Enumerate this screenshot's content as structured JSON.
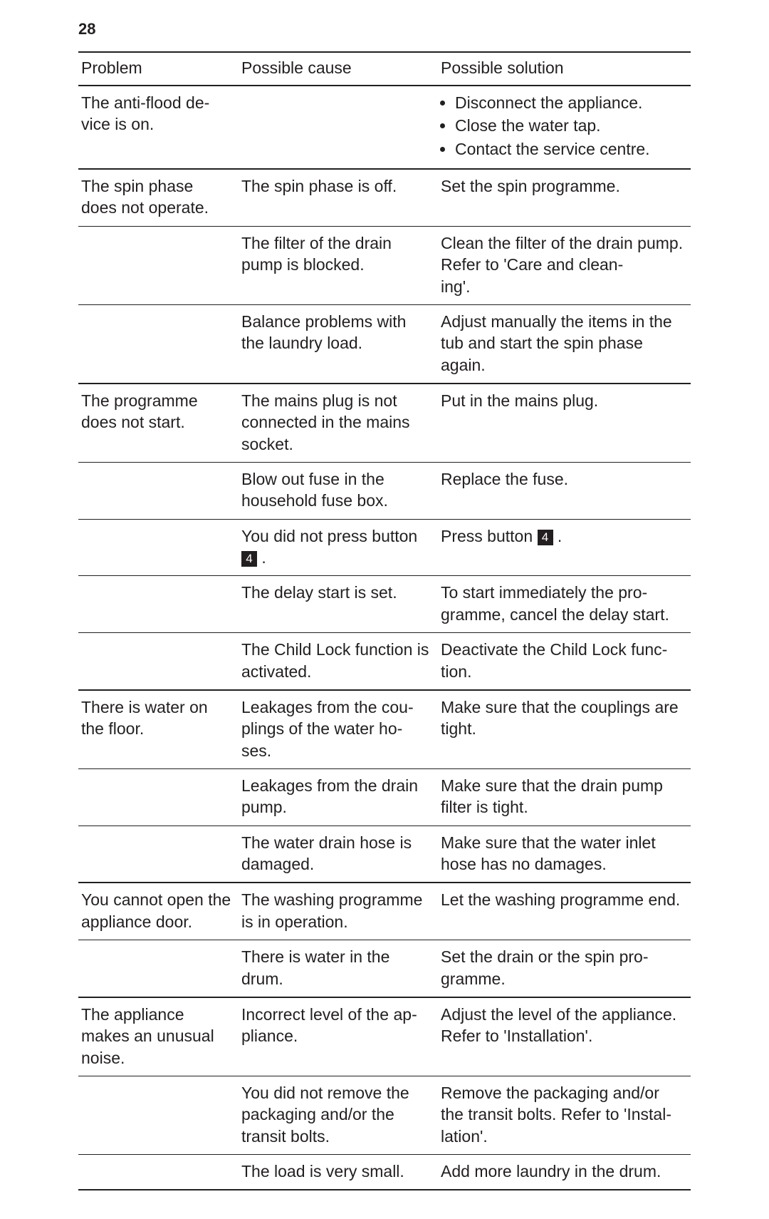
{
  "page_number": "28",
  "table": {
    "headers": {
      "col1": "Problem",
      "col2": "Possible cause",
      "col3": "Possible solution"
    },
    "rows": [
      {
        "problem": "The anti-flood de-\nvice is on.",
        "cause": "",
        "solution_list": [
          "Disconnect the appliance.",
          "Close the water tap.",
          "Contact the service centre."
        ],
        "group_end": true
      },
      {
        "problem": "The spin phase does not operate.",
        "cause": "The spin phase is off.",
        "solution": "Set the spin programme.",
        "group_end": false
      },
      {
        "problem": "",
        "cause": "The filter of the drain pump is blocked.",
        "solution": "Clean the filter of the drain pump. Refer to 'Care and clean-\ning'.",
        "group_end": false
      },
      {
        "problem": "",
        "cause": "Balance problems with the laundry load.",
        "solution": "Adjust manually the items in the tub and start the spin phase again.",
        "group_end": true
      },
      {
        "problem": "The programme does not start.",
        "cause": "The mains plug is not connected in the mains socket.",
        "solution": "Put in the mains plug.",
        "group_end": false
      },
      {
        "problem": "",
        "cause": "Blow out fuse in the household fuse box.",
        "solution": "Replace the fuse.",
        "group_end": false
      },
      {
        "problem": "",
        "cause_pre": "You did not press button ",
        "keycap": "4",
        "cause_post": " .",
        "solution_pre": "Press button ",
        "solution_keycap": "4",
        "solution_post": " .",
        "group_end": false
      },
      {
        "problem": "",
        "cause": "The delay start is set.",
        "solution": "To start immediately the pro-\ngramme, cancel the delay start.",
        "group_end": false
      },
      {
        "problem": "",
        "cause": "The Child Lock function is activated.",
        "solution": "Deactivate the Child Lock func-\ntion.",
        "group_end": true
      },
      {
        "problem": "There is water on the floor.",
        "cause": "Leakages from the cou-\nplings of the water ho-\nses.",
        "solution": "Make sure that the couplings are tight.",
        "group_end": false
      },
      {
        "problem": "",
        "cause": "Leakages from the drain pump.",
        "solution": "Make sure that the drain pump filter is tight.",
        "group_end": false
      },
      {
        "problem": "",
        "cause": "The water drain hose is damaged.",
        "solution": "Make sure that the water inlet hose has no damages.",
        "group_end": true
      },
      {
        "problem": "You cannot open the appliance door.",
        "cause": "The washing programme is in operation.",
        "solution": "Let the washing programme end.",
        "group_end": false
      },
      {
        "problem": "",
        "cause": "There is water in the drum.",
        "solution": "Set the drain or the spin pro-\ngramme.",
        "group_end": true
      },
      {
        "problem": "The appliance makes an unusual noise.",
        "cause": "Incorrect level of the ap-\npliance.",
        "solution": "Adjust the level of the appliance. Refer to 'Installation'.",
        "group_end": false
      },
      {
        "problem": "",
        "cause": "You did not remove the packaging and/or the transit bolts.",
        "solution": "Remove the packaging and/or the transit bolts. Refer to 'Instal-\nlation'.",
        "group_end": false
      },
      {
        "problem": "",
        "cause": "The load is very small.",
        "solution": "Add more laundry in the drum.",
        "group_end": true
      }
    ]
  }
}
